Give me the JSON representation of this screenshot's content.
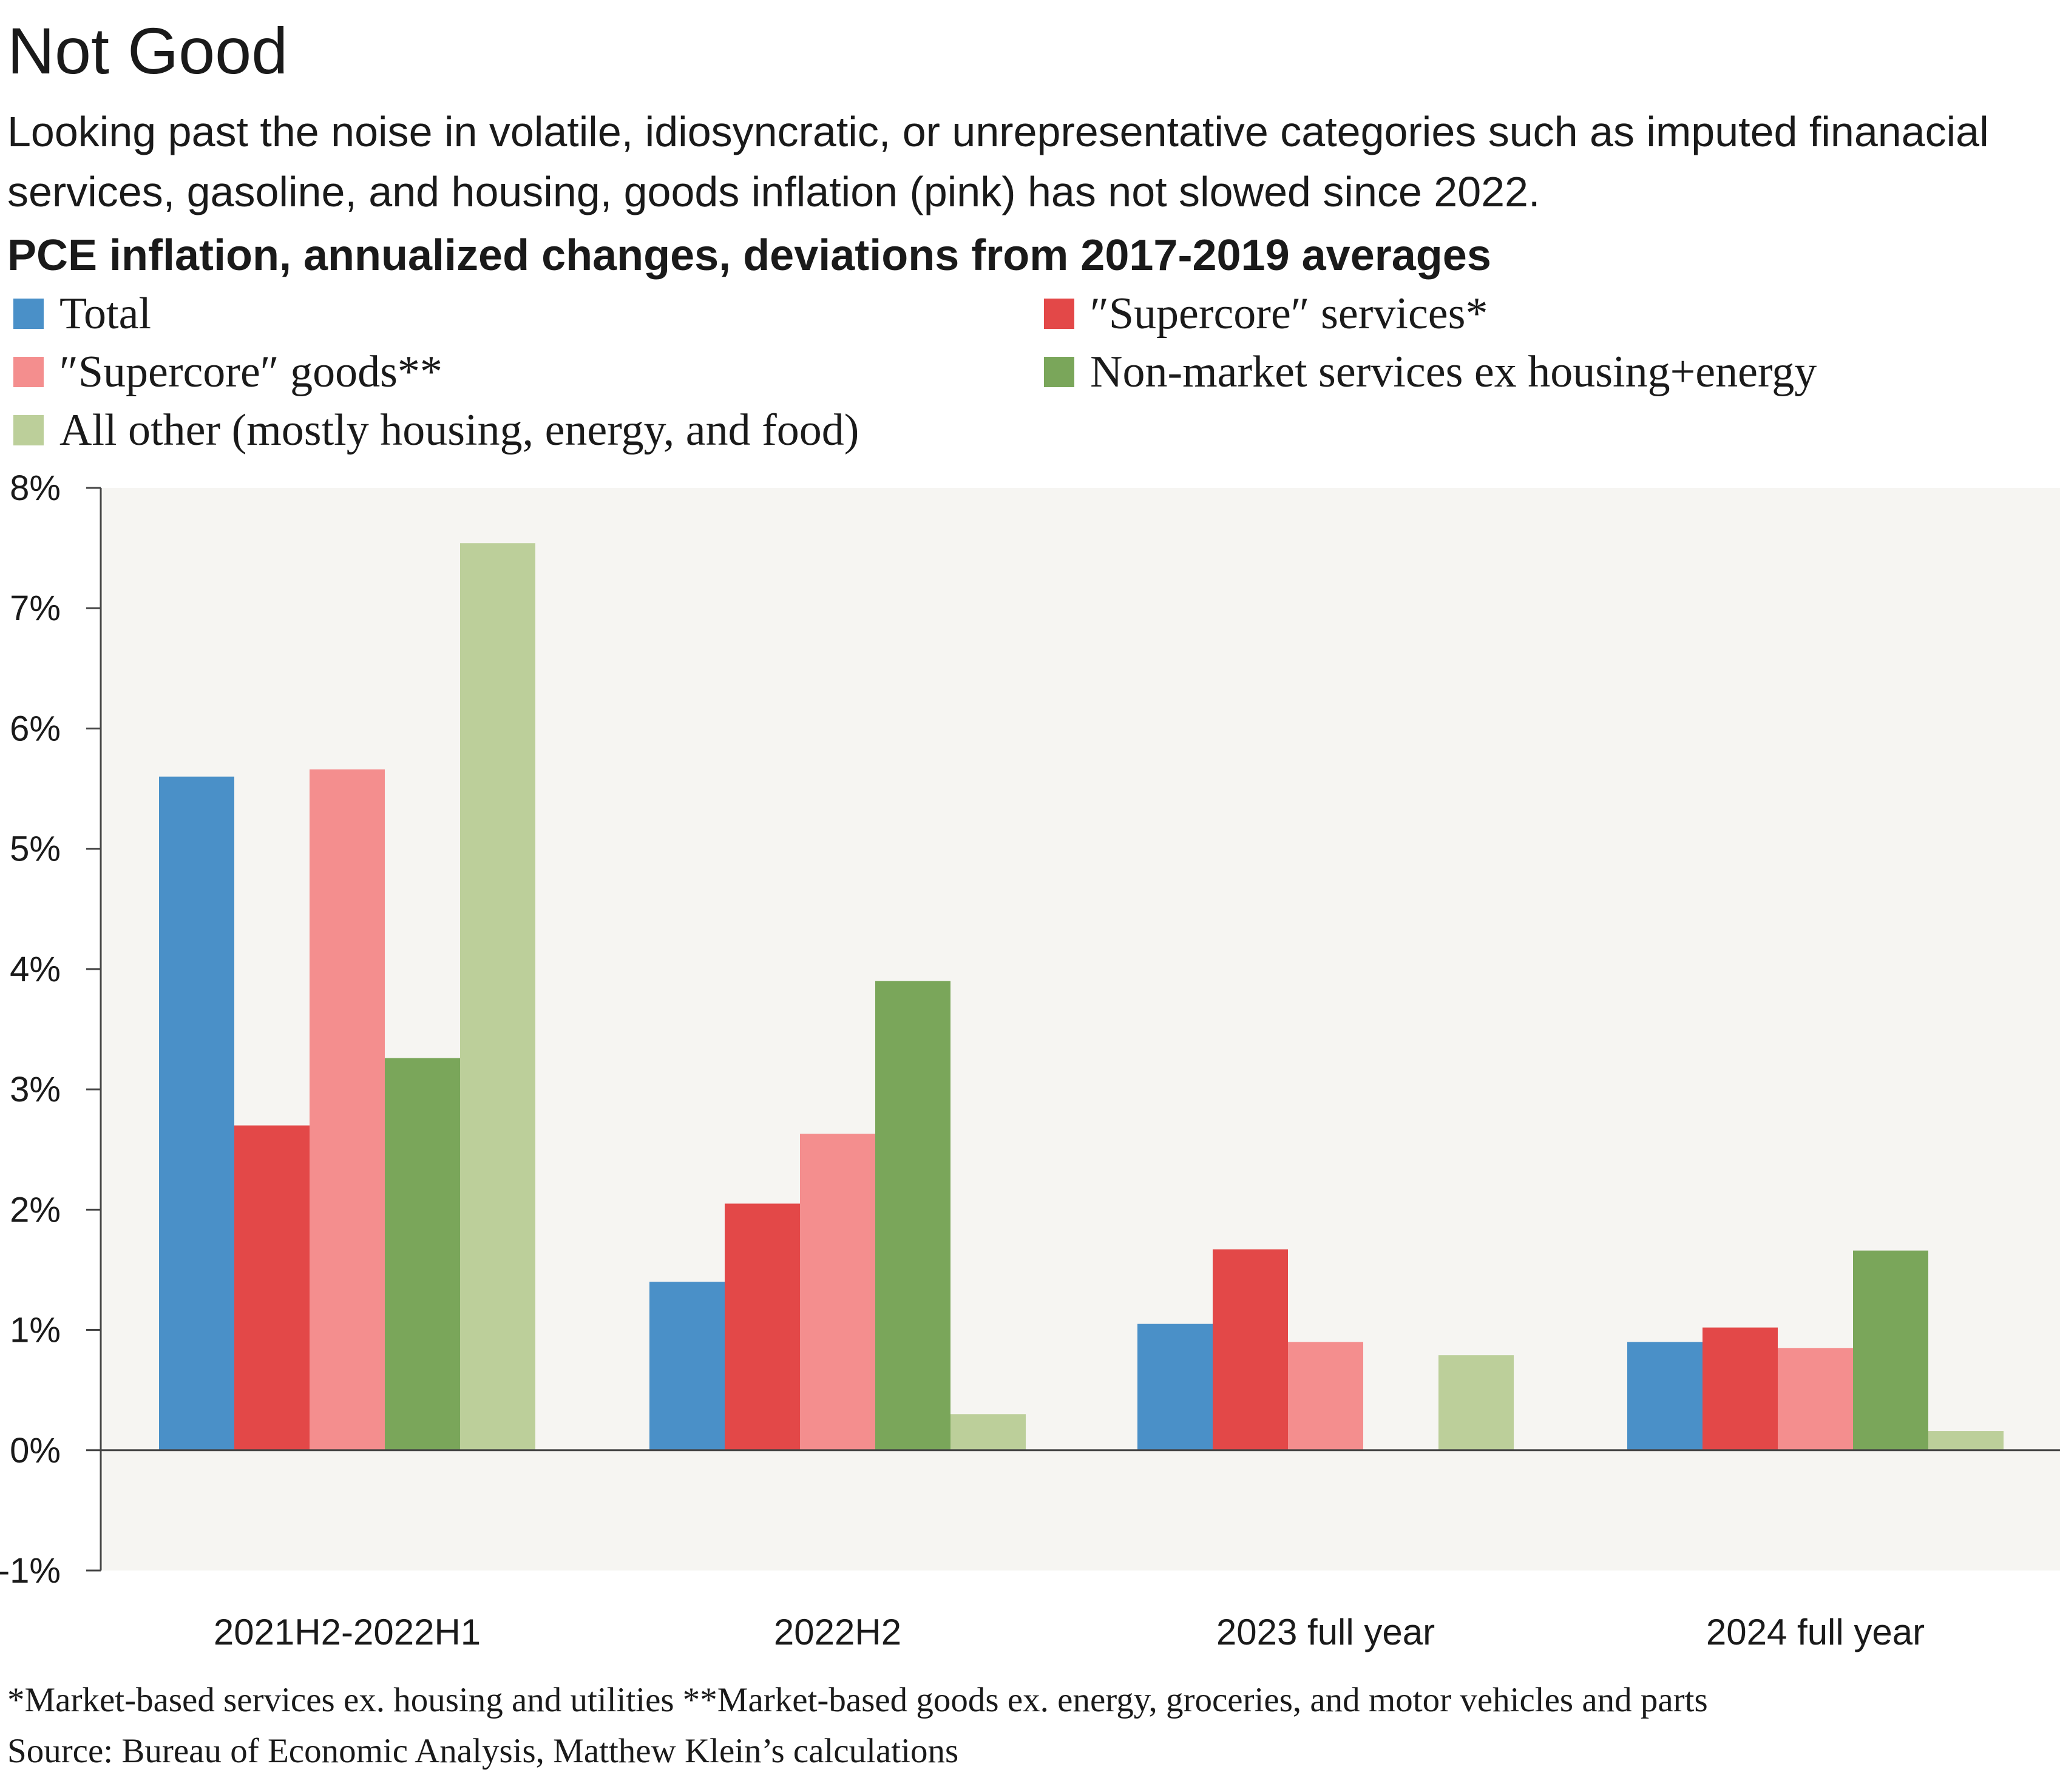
{
  "header": {
    "title": "Not Good",
    "subtitle": "Looking past the noise in volatile, idiosyncratic, or unrepresentative categories such as imputed finanacial services, gasoline, and housing, goods inflation (pink) has not slowed since 2022.",
    "chart_heading": "PCE inflation, annualized changes, deviations from 2017-2019 averages"
  },
  "legend": [
    {
      "label": "Total",
      "color": "#4a90c8"
    },
    {
      "label": "″Supercore″ services*",
      "color": "#e34848"
    },
    {
      "label": "″Supercore″ goods**",
      "color": "#f48e8e"
    },
    {
      "label": "Non-market services ex housing+energy",
      "color": "#7aa65a"
    },
    {
      "label": "All other (mostly housing, energy, and food)",
      "color": "#bccf9a"
    }
  ],
  "chart_data": {
    "type": "bar",
    "categories": [
      "2021H2-2022H1",
      "2022H2",
      "2023 full year",
      "2024 full year"
    ],
    "series": [
      {
        "name": "Total",
        "color": "#4a90c8",
        "values": [
          5.6,
          1.4,
          1.05,
          0.9
        ]
      },
      {
        "name": "″Supercore″ services*",
        "color": "#e34848",
        "values": [
          2.7,
          2.05,
          1.67,
          1.02
        ]
      },
      {
        "name": "″Supercore″ goods**",
        "color": "#f48e8e",
        "values": [
          5.66,
          2.63,
          0.9,
          0.85
        ]
      },
      {
        "name": "Non-market services ex housing+energy",
        "color": "#7aa65a",
        "values": [
          3.26,
          3.9,
          0.0,
          1.66
        ]
      },
      {
        "name": "All other (mostly housing, energy, and food)",
        "color": "#bccf9a",
        "values": [
          7.54,
          0.3,
          0.79,
          0.16
        ]
      }
    ],
    "ylim": [
      -1,
      8
    ],
    "yticks": [
      -1,
      0,
      1,
      2,
      3,
      4,
      5,
      6,
      7,
      8
    ],
    "ytick_labels": [
      "-1%",
      "0%",
      "1%",
      "2%",
      "3%",
      "4%",
      "5%",
      "6%",
      "7%",
      "8%"
    ],
    "grid": false,
    "legend_position": "top",
    "plot_background": "#f6f5f2"
  },
  "footer": {
    "footnote": "*Market-based services ex. housing and utilities  **Market-based goods ex. energy, groceries, and motor vehicles and parts",
    "source": "Source: Bureau of Economic Analysis, Matthew Klein’s calculations"
  }
}
